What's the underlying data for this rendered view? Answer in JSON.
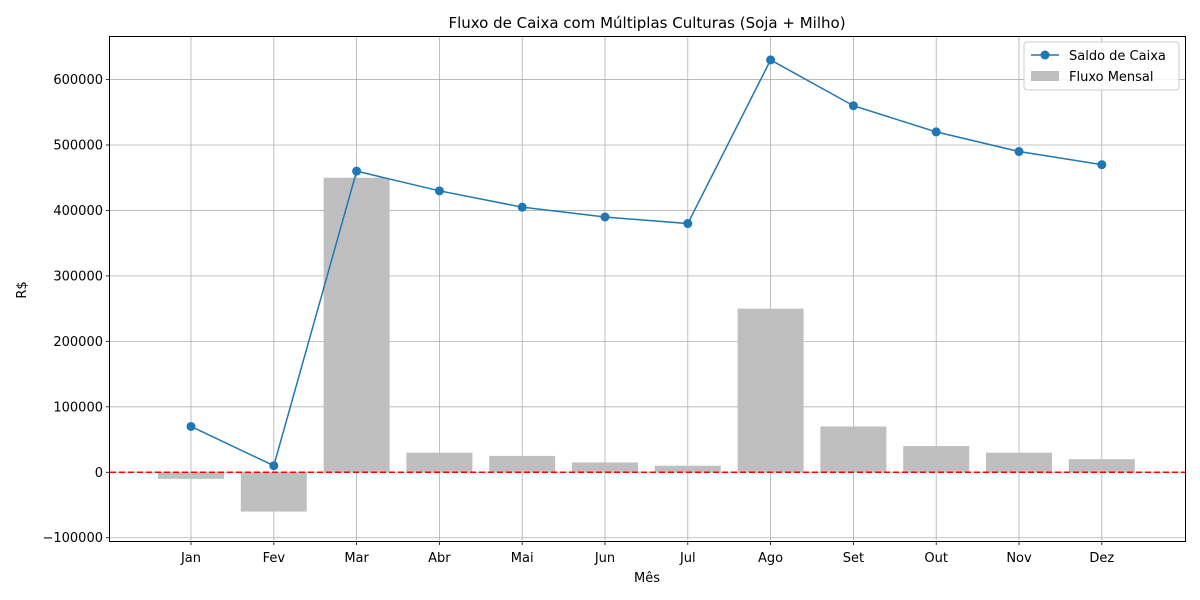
{
  "chart_data": {
    "type": "bar+line",
    "title": "Fluxo de Caixa com Múltiplas Culturas (Soja + Milho)",
    "xlabel": "Mês",
    "ylabel": "R$",
    "categories": [
      "Jan",
      "Fev",
      "Mar",
      "Abr",
      "Mai",
      "Jun",
      "Jul",
      "Ago",
      "Set",
      "Out",
      "Nov",
      "Dez"
    ],
    "series": [
      {
        "name": "Saldo de Caixa",
        "kind": "line",
        "color": "#1f77b4",
        "values": [
          70000,
          10000,
          460000,
          430000,
          405000,
          390000,
          380000,
          630000,
          560000,
          520000,
          490000,
          470000
        ]
      },
      {
        "name": "Fluxo Mensal",
        "kind": "bar",
        "color": "#bfbfbf",
        "values": [
          -10000,
          -60000,
          450000,
          30000,
          25000,
          15000,
          10000,
          250000,
          70000,
          40000,
          30000,
          20000
        ]
      }
    ],
    "reference_line": {
      "y": 0,
      "color": "#ff0000",
      "style": "dashed"
    },
    "ylim": [
      -105000,
      665000
    ],
    "yticks": [
      -100000,
      0,
      100000,
      200000,
      300000,
      400000,
      500000,
      600000
    ],
    "ytick_labels": [
      "−100000",
      "0",
      "100000",
      "200000",
      "300000",
      "400000",
      "500000",
      "600000"
    ],
    "grid": true,
    "legend_position": "top-right"
  }
}
